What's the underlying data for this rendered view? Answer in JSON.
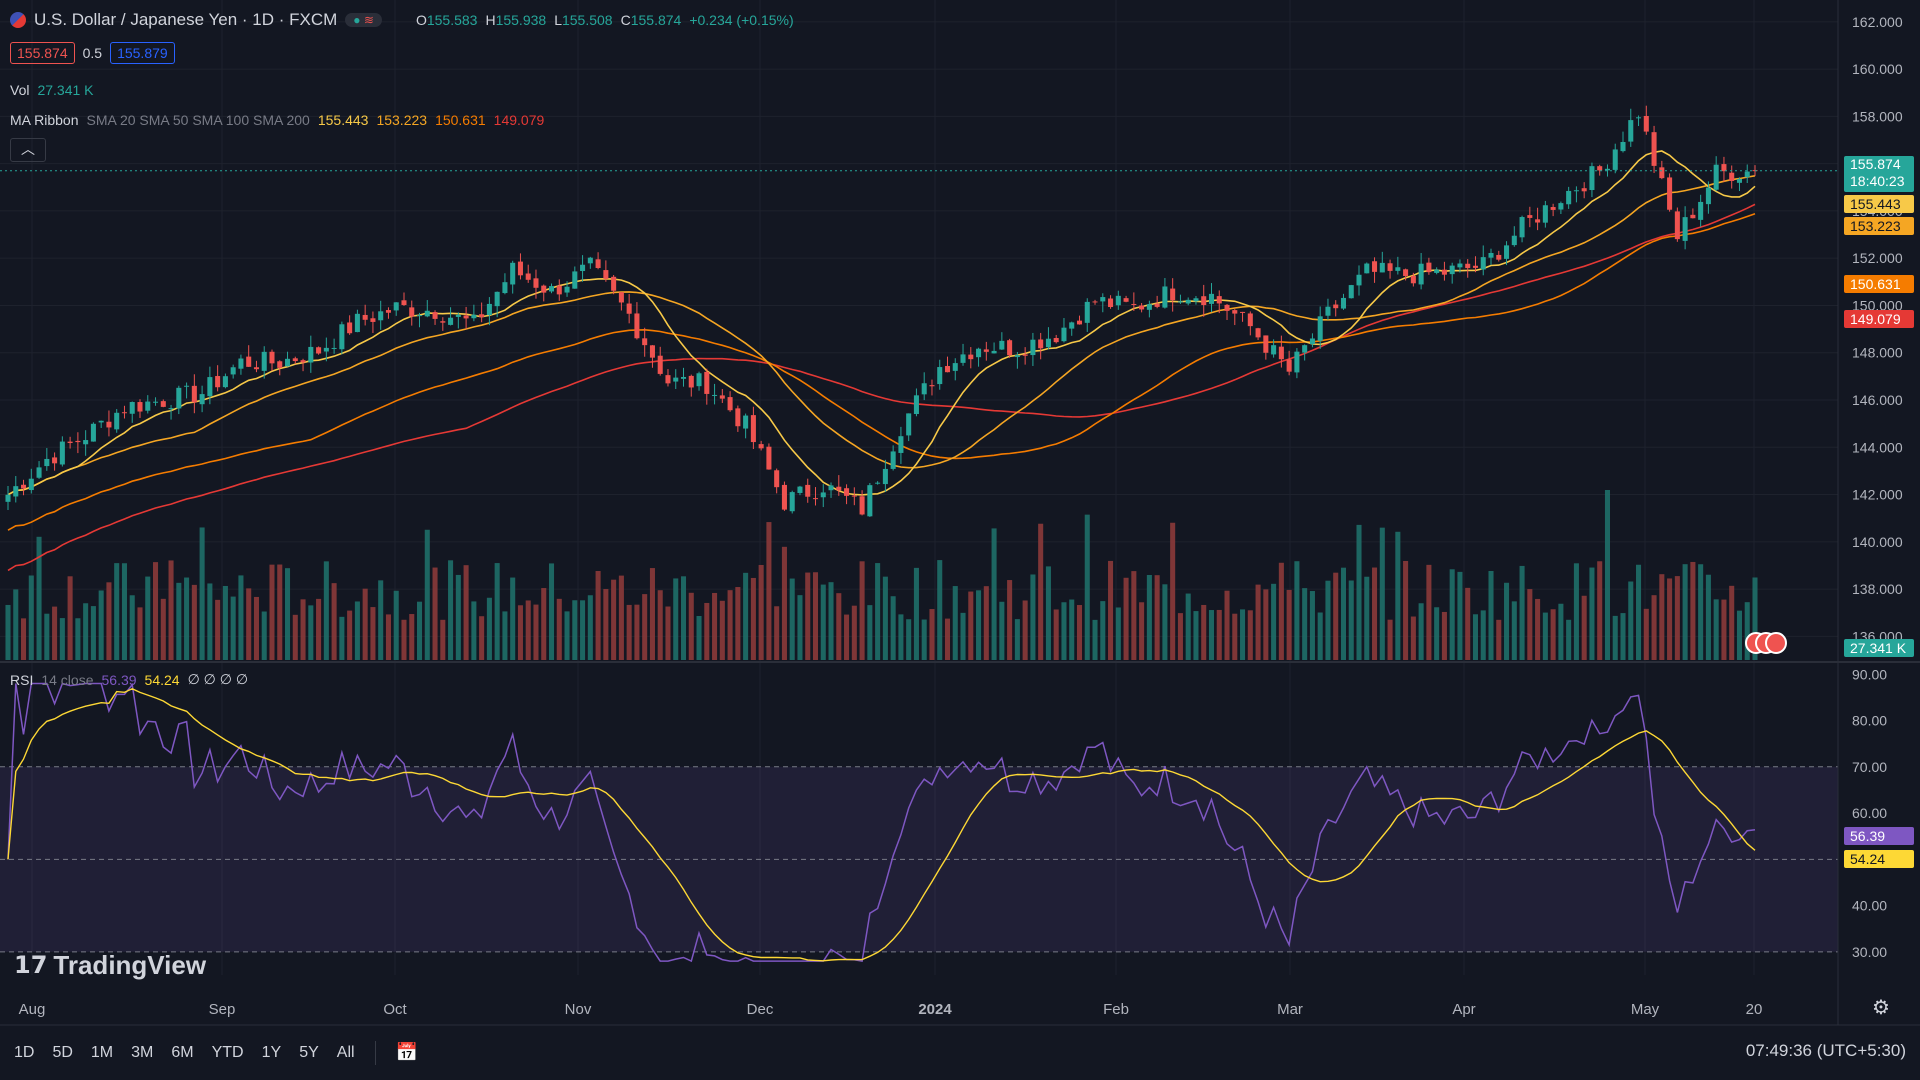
{
  "header": {
    "title": "U.S. Dollar / Japanese Yen · 1D · FXCM",
    "ohlc": {
      "o_label": "O",
      "o": "155.583",
      "h_label": "H",
      "h": "155.938",
      "l_label": "L",
      "l": "155.508",
      "c_label": "C",
      "c": "155.874",
      "change": "+0.234 (+0.15%)"
    },
    "bid": "155.874",
    "spread": "0.5",
    "ask": "155.879"
  },
  "vol": {
    "label": "Vol",
    "value": "27.341 K"
  },
  "ma": {
    "label": "MA Ribbon",
    "params": "SMA 20 SMA 50 SMA 100 SMA 200",
    "v20": "155.443",
    "v50": "153.223",
    "v100": "150.631",
    "v200": "149.079"
  },
  "rsi": {
    "label": "RSI",
    "params": "14 close",
    "value": "56.39",
    "ma_value": "54.24",
    "rest": "∅ ∅ ∅ ∅"
  },
  "price_axis": {
    "ticks": [
      "162.000",
      "160.000",
      "158.000",
      "156.000",
      "154.000",
      "152.000",
      "150.000",
      "148.000",
      "146.000",
      "144.000",
      "142.000",
      "140.000",
      "138.000",
      "136.000"
    ],
    "last": "155.874",
    "countdown": "18:40:23",
    "vol_tag": "27.341 K"
  },
  "rsi_axis": {
    "ticks": [
      "90.00",
      "80.00",
      "70.00",
      "60.00",
      "50.00",
      "40.00",
      "30.00"
    ]
  },
  "time_axis": [
    "Aug",
    "Sep",
    "Oct",
    "Nov",
    "Dec",
    "2024",
    "Feb",
    "Mar",
    "Apr",
    "May",
    "20"
  ],
  "brand": "TradingView",
  "timeframes": [
    "1D",
    "5D",
    "1M",
    "3M",
    "6M",
    "YTD",
    "1Y",
    "5Y",
    "All"
  ],
  "clock": "07:49:36 (UTC+5:30)",
  "colors": {
    "bg": "#131722",
    "up": "#26a69a",
    "down": "#ef5350",
    "sma20": "#f7c948",
    "sma50": "#f5a623",
    "sma100": "#f57c00",
    "sma200": "#e53935",
    "rsi": "#7e57c2",
    "rsi_ma": "#fdd835"
  },
  "icons": [
    "usd-jpy-flag-icon",
    "collapse-chevron-icon",
    "settings-gear-icon",
    "date-range-calendar-icon",
    "tradingview-logo-icon"
  ],
  "chart_data": {
    "type": "candlestick",
    "symbol": "USDJPY",
    "ylim": [
      135,
      162.5
    ],
    "rsi_ylim": [
      25,
      92
    ],
    "xlabels": [
      "Aug",
      "Sep",
      "Oct",
      "Nov",
      "Dec",
      "2024",
      "Feb",
      "Mar",
      "Apr",
      "May",
      "20"
    ],
    "closes_weekly": [
      142.0,
      143.5,
      144.5,
      145.7,
      146.0,
      146.3,
      147.6,
      147.6,
      148.1,
      149.3,
      149.9,
      149.8,
      149.2,
      151.5,
      150.6,
      151.6,
      149.6,
      146.8,
      146.7,
      144.9,
      141.7,
      142.4,
      141.4,
      144.9,
      147.4,
      148.3,
      148.2,
      148.8,
      150.2,
      149.9,
      150.6,
      150.4,
      149.1,
      147.2,
      149.6,
      151.4,
      151.3,
      151.4,
      151.7,
      153.3,
      154.6,
      155.7,
      158.2,
      152.9,
      155.6,
      155.7
    ],
    "sma_last": {
      "sma20": 155.443,
      "sma50": 153.223,
      "sma100": 150.631,
      "sma200": 149.079
    },
    "rsi_last": {
      "rsi": 56.39,
      "rsi_ma": 54.24
    },
    "rsi_bands": [
      70,
      50,
      30
    ]
  }
}
